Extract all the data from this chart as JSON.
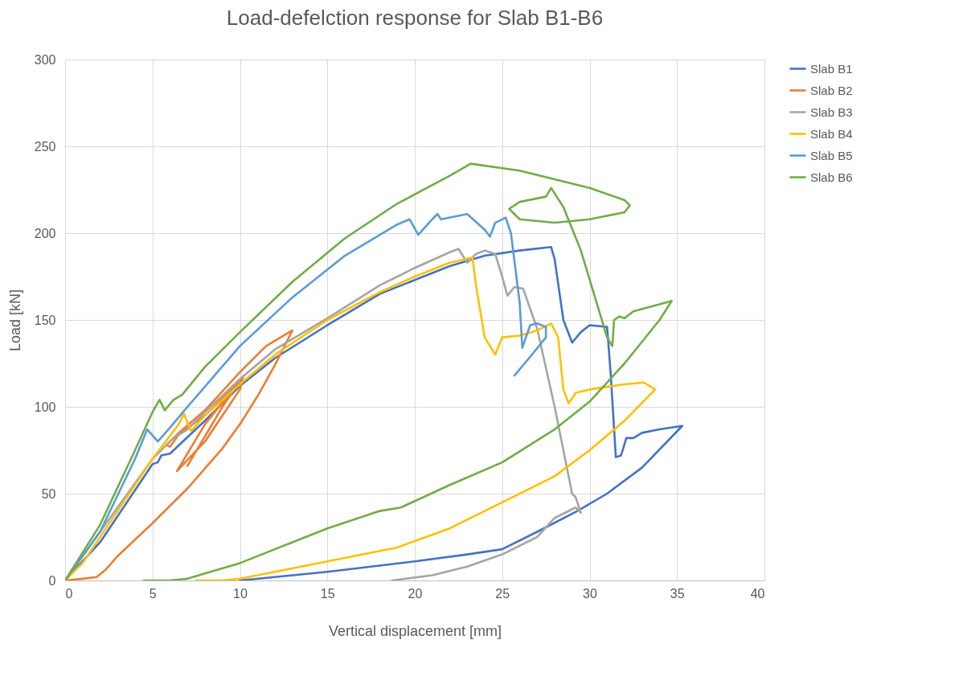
{
  "chart_data": {
    "type": "line",
    "title": "Load-defelction response for Slab B1-B6",
    "xlabel": "Vertical displacement [mm]",
    "ylabel": "Load [kN]",
    "xlim": [
      0,
      40
    ],
    "ylim": [
      0,
      300
    ],
    "xticks": [
      0,
      5,
      10,
      15,
      20,
      25,
      30,
      35,
      40
    ],
    "yticks": [
      0,
      50,
      100,
      150,
      200,
      250,
      300
    ],
    "grid": true,
    "legend": "right",
    "marker": "none",
    "line_style": "solid",
    "series": [
      {
        "name": "Slab B1",
        "color": "#4472c4",
        "x": [
          0,
          2,
          4,
          5,
          5.3,
          5.5,
          6,
          8,
          10,
          12,
          15,
          18,
          20,
          22,
          24,
          26,
          27.8,
          28,
          28.5,
          29,
          29.5,
          30,
          31,
          31.2,
          31.5,
          31.8,
          32.1,
          32.5,
          33,
          34,
          35.3,
          33,
          31,
          29.3,
          27,
          25,
          23,
          20,
          15,
          10
        ],
        "values": [
          0,
          22,
          52,
          67,
          68,
          72,
          73,
          92,
          112,
          128,
          147,
          165,
          173,
          181,
          187,
          190,
          192,
          185,
          150,
          137,
          143,
          147,
          146,
          120,
          71,
          72,
          82,
          82,
          85,
          87,
          89,
          65,
          50,
          40,
          28,
          18,
          15,
          11,
          5,
          0
        ]
      },
      {
        "name": "Slab B2",
        "color": "#ed7d31",
        "x": [
          0,
          1,
          1.8,
          2.3,
          3,
          5,
          7,
          9,
          10,
          11,
          12,
          13,
          12.5,
          11.5,
          10,
          8,
          6.5,
          6,
          5.8,
          6,
          6.5,
          8,
          10,
          8,
          6.4,
          8,
          10,
          10.2,
          9,
          7
        ],
        "values": [
          0,
          1,
          2,
          6,
          14,
          33,
          53,
          76,
          90,
          106,
          124,
          144,
          141,
          135,
          120,
          98,
          85,
          80,
          78,
          77,
          84,
          95,
          115,
          90,
          63,
          80,
          110,
          118,
          100,
          66
        ]
      },
      {
        "name": "Slab B3",
        "color": "#a5a5a5",
        "x": [
          0,
          5,
          6,
          6.2,
          7,
          8,
          10,
          12,
          15,
          18,
          20,
          22,
          22.5,
          23,
          23.5,
          24,
          24.6,
          25,
          25.3,
          25.7,
          26.2,
          27,
          28,
          29,
          29.2,
          29.5,
          29.2,
          28,
          27,
          25,
          23,
          21,
          18.7
        ],
        "values": [
          0,
          70,
          80,
          82,
          87,
          97,
          116,
          133,
          151,
          170,
          180,
          189,
          191,
          183,
          188,
          190,
          188,
          175,
          164,
          169,
          168,
          145,
          100,
          50,
          48,
          39,
          42,
          36,
          25,
          15,
          8,
          3,
          0
        ]
      },
      {
        "name": "Slab B4",
        "color": "#ffc000",
        "x": [
          0,
          1,
          3,
          5,
          6.5,
          6.8,
          7.2,
          8,
          10,
          12,
          15,
          18,
          20,
          22,
          23.3,
          23.5,
          24,
          24.6,
          25,
          26,
          27,
          27.8,
          28.2,
          28.5,
          28.8,
          29.2,
          30,
          32,
          33.1,
          33.75,
          32,
          30,
          28,
          25,
          22,
          19,
          15,
          12,
          10,
          9,
          7.5
        ],
        "values": [
          0,
          10,
          40,
          70,
          90,
          96,
          86,
          95,
          113,
          130,
          150,
          166,
          175,
          183,
          186,
          170,
          140,
          130,
          140,
          141,
          144,
          148,
          140,
          110,
          102,
          108,
          110,
          113,
          114,
          110,
          92,
          75,
          60,
          45,
          30,
          19,
          11,
          5,
          1,
          0,
          0
        ]
      },
      {
        "name": "Slab B5",
        "color": "#5b9bd5",
        "x": [
          0,
          2,
          4,
          4.7,
          5.3,
          6,
          7,
          10,
          13,
          16,
          19,
          19.7,
          20.2,
          21,
          21.3,
          21.5,
          23,
          24,
          24.3,
          24.6,
          25.2,
          25.5,
          26,
          26.15,
          26.6,
          27,
          27.5,
          27.5,
          26.7,
          25.7
        ],
        "values": [
          0,
          28,
          70,
          87,
          80,
          88,
          100,
          135,
          163,
          187,
          205,
          208,
          199,
          208,
          211,
          208,
          211,
          202,
          198,
          206,
          209,
          200,
          160,
          134,
          147,
          148,
          146,
          140,
          130,
          118
        ]
      },
      {
        "name": "Slab B6",
        "color": "#70ad47",
        "x": [
          0,
          2,
          4,
          5,
          5.4,
          5.7,
          6.2,
          6.7,
          8,
          10,
          13,
          16,
          19,
          22,
          23.2,
          26,
          30,
          32,
          32.3,
          32,
          30,
          28,
          26,
          25.4,
          26,
          27.5,
          27.8,
          28.5,
          29.5,
          31,
          31.3,
          31.4,
          31.7,
          32,
          32.5,
          34,
          34.7,
          34,
          32,
          30,
          28,
          25,
          22,
          19.2,
          18,
          15,
          13,
          12,
          10,
          8,
          7,
          6,
          4.5
        ],
        "values": [
          0,
          32,
          75,
          97,
          104,
          98,
          104,
          107,
          123,
          143,
          172,
          197,
          217,
          233,
          240,
          236,
          226,
          219,
          216,
          212,
          208,
          206,
          208,
          214,
          218,
          221,
          226,
          215,
          190,
          140,
          135,
          150,
          152,
          151,
          155,
          159,
          161,
          150,
          125,
          103,
          87,
          68,
          55,
          42,
          40,
          30,
          22,
          18,
          10,
          4,
          1,
          0,
          0
        ]
      }
    ]
  }
}
